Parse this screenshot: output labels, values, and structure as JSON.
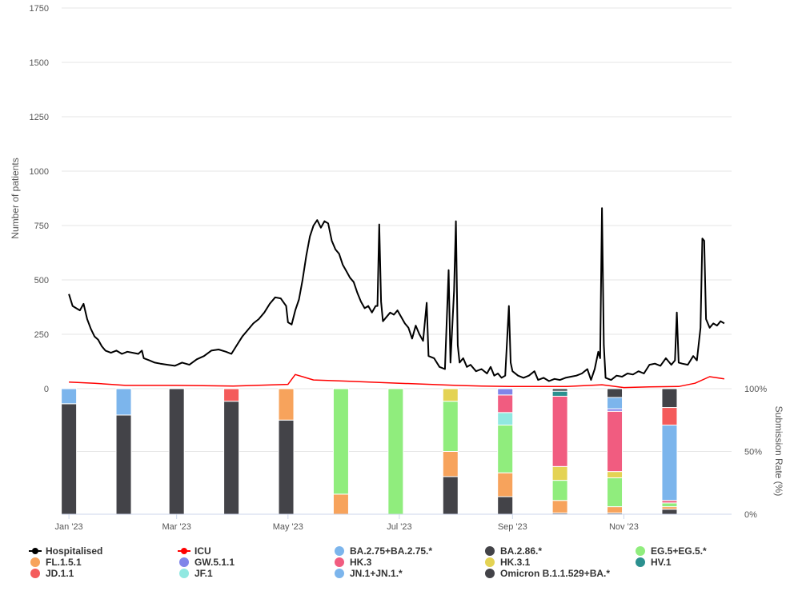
{
  "chart_data": {
    "type": "line",
    "x_axis": {
      "type": "date",
      "ticks": [
        {
          "date": "2023-01-01",
          "label": "Jan '23"
        },
        {
          "date": "2023-03-01",
          "label": "Mar '23"
        },
        {
          "date": "2023-05-01",
          "label": "May '23"
        },
        {
          "date": "2023-07-01",
          "label": "Jul '23"
        },
        {
          "date": "2023-09-01",
          "label": "Sep '23"
        },
        {
          "date": "2023-11-01",
          "label": "Nov '23"
        }
      ],
      "range": [
        "2022-12-28",
        "2023-12-30"
      ]
    },
    "top_panel": {
      "ylabel": "Number of patients",
      "ylim": [
        0,
        1750
      ],
      "yticks": [
        "0",
        "250",
        "500",
        "750",
        "1000",
        "1250",
        "1500",
        "1750"
      ],
      "series": [
        {
          "name": "Hospitalised",
          "color": "#000000",
          "points": [
            [
              "2023-01-01",
              435
            ],
            [
              "2023-01-03",
              380
            ],
            [
              "2023-01-05",
              370
            ],
            [
              "2023-01-07",
              360
            ],
            [
              "2023-01-09",
              390
            ],
            [
              "2023-01-11",
              320
            ],
            [
              "2023-01-13",
              275
            ],
            [
              "2023-01-15",
              240
            ],
            [
              "2023-01-17",
              225
            ],
            [
              "2023-01-19",
              195
            ],
            [
              "2023-01-21",
              175
            ],
            [
              "2023-01-24",
              165
            ],
            [
              "2023-01-27",
              175
            ],
            [
              "2023-01-30",
              160
            ],
            [
              "2023-02-02",
              170
            ],
            [
              "2023-02-05",
              165
            ],
            [
              "2023-02-08",
              160
            ],
            [
              "2023-02-10",
              175
            ],
            [
              "2023-02-11",
              140
            ],
            [
              "2023-02-14",
              130
            ],
            [
              "2023-02-17",
              120
            ],
            [
              "2023-02-20",
              115
            ],
            [
              "2023-02-24",
              110
            ],
            [
              "2023-02-28",
              105
            ],
            [
              "2023-03-04",
              120
            ],
            [
              "2023-03-08",
              110
            ],
            [
              "2023-03-12",
              135
            ],
            [
              "2023-03-16",
              150
            ],
            [
              "2023-03-20",
              175
            ],
            [
              "2023-03-24",
              180
            ],
            [
              "2023-03-28",
              170
            ],
            [
              "2023-03-31",
              160
            ],
            [
              "2023-04-03",
              200
            ],
            [
              "2023-04-06",
              240
            ],
            [
              "2023-04-09",
              270
            ],
            [
              "2023-04-12",
              300
            ],
            [
              "2023-04-15",
              320
            ],
            [
              "2023-04-18",
              350
            ],
            [
              "2023-04-21",
              390
            ],
            [
              "2023-04-24",
              420
            ],
            [
              "2023-04-27",
              415
            ],
            [
              "2023-04-30",
              380
            ],
            [
              "2023-05-01",
              305
            ],
            [
              "2023-05-03",
              295
            ],
            [
              "2023-05-05",
              360
            ],
            [
              "2023-05-07",
              410
            ],
            [
              "2023-05-09",
              500
            ],
            [
              "2023-05-11",
              610
            ],
            [
              "2023-05-13",
              700
            ],
            [
              "2023-05-15",
              750
            ],
            [
              "2023-05-17",
              775
            ],
            [
              "2023-05-19",
              740
            ],
            [
              "2023-05-21",
              770
            ],
            [
              "2023-05-23",
              760
            ],
            [
              "2023-05-25",
              680
            ],
            [
              "2023-05-27",
              640
            ],
            [
              "2023-05-29",
              620
            ],
            [
              "2023-05-31",
              570
            ],
            [
              "2023-06-02",
              540
            ],
            [
              "2023-06-04",
              510
            ],
            [
              "2023-06-06",
              490
            ],
            [
              "2023-06-08",
              440
            ],
            [
              "2023-06-10",
              400
            ],
            [
              "2023-06-12",
              370
            ],
            [
              "2023-06-14",
              380
            ],
            [
              "2023-06-16",
              350
            ],
            [
              "2023-06-18",
              380
            ],
            [
              "2023-06-19",
              380
            ],
            [
              "2023-06-20",
              755
            ],
            [
              "2023-06-21",
              400
            ],
            [
              "2023-06-22",
              310
            ],
            [
              "2023-06-24",
              330
            ],
            [
              "2023-06-26",
              350
            ],
            [
              "2023-06-28",
              340
            ],
            [
              "2023-06-30",
              360
            ],
            [
              "2023-07-02",
              330
            ],
            [
              "2023-07-04",
              300
            ],
            [
              "2023-07-06",
              280
            ],
            [
              "2023-07-08",
              230
            ],
            [
              "2023-07-10",
              290
            ],
            [
              "2023-07-12",
              250
            ],
            [
              "2023-07-14",
              220
            ],
            [
              "2023-07-16",
              395
            ],
            [
              "2023-07-17",
              150
            ],
            [
              "2023-07-20",
              140
            ],
            [
              "2023-07-23",
              100
            ],
            [
              "2023-07-26",
              90
            ],
            [
              "2023-07-28",
              545
            ],
            [
              "2023-07-29",
              120
            ],
            [
              "2023-07-31",
              450
            ],
            [
              "2023-08-01",
              770
            ],
            [
              "2023-08-02",
              200
            ],
            [
              "2023-08-03",
              120
            ],
            [
              "2023-08-05",
              140
            ],
            [
              "2023-08-07",
              100
            ],
            [
              "2023-08-09",
              110
            ],
            [
              "2023-08-12",
              80
            ],
            [
              "2023-08-15",
              90
            ],
            [
              "2023-08-18",
              70
            ],
            [
              "2023-08-20",
              100
            ],
            [
              "2023-08-22",
              60
            ],
            [
              "2023-08-24",
              70
            ],
            [
              "2023-08-26",
              50
            ],
            [
              "2023-08-28",
              60
            ],
            [
              "2023-08-30",
              380
            ],
            [
              "2023-08-31",
              120
            ],
            [
              "2023-09-01",
              80
            ],
            [
              "2023-09-04",
              60
            ],
            [
              "2023-09-07",
              50
            ],
            [
              "2023-09-10",
              60
            ],
            [
              "2023-09-13",
              80
            ],
            [
              "2023-09-15",
              40
            ],
            [
              "2023-09-18",
              50
            ],
            [
              "2023-09-21",
              35
            ],
            [
              "2023-09-24",
              45
            ],
            [
              "2023-09-27",
              40
            ],
            [
              "2023-09-30",
              50
            ],
            [
              "2023-10-03",
              55
            ],
            [
              "2023-10-06",
              60
            ],
            [
              "2023-10-09",
              70
            ],
            [
              "2023-10-12",
              90
            ],
            [
              "2023-10-14",
              40
            ],
            [
              "2023-10-16",
              90
            ],
            [
              "2023-10-18",
              170
            ],
            [
              "2023-10-19",
              140
            ],
            [
              "2023-10-20",
              830
            ],
            [
              "2023-10-21",
              200
            ],
            [
              "2023-10-22",
              50
            ],
            [
              "2023-10-25",
              40
            ],
            [
              "2023-10-28",
              60
            ],
            [
              "2023-10-31",
              55
            ],
            [
              "2023-11-03",
              70
            ],
            [
              "2023-11-06",
              65
            ],
            [
              "2023-11-09",
              80
            ],
            [
              "2023-11-12",
              70
            ],
            [
              "2023-11-15",
              110
            ],
            [
              "2023-11-18",
              115
            ],
            [
              "2023-11-21",
              105
            ],
            [
              "2023-11-24",
              140
            ],
            [
              "2023-11-27",
              110
            ],
            [
              "2023-11-29",
              130
            ],
            [
              "2023-11-30",
              350
            ],
            [
              "2023-12-01",
              120
            ],
            [
              "2023-12-03",
              115
            ],
            [
              "2023-12-06",
              110
            ],
            [
              "2023-12-09",
              150
            ],
            [
              "2023-12-11",
              130
            ],
            [
              "2023-12-13",
              280
            ],
            [
              "2023-12-14",
              690
            ],
            [
              "2023-12-15",
              680
            ],
            [
              "2023-12-16",
              320
            ],
            [
              "2023-12-18",
              280
            ],
            [
              "2023-12-20",
              300
            ],
            [
              "2023-12-22",
              290
            ],
            [
              "2023-12-24",
              310
            ],
            [
              "2023-12-26",
              300
            ]
          ]
        },
        {
          "name": "ICU",
          "color": "#ff0000",
          "points": [
            [
              "2023-01-01",
              30
            ],
            [
              "2023-01-15",
              25
            ],
            [
              "2023-02-01",
              15
            ],
            [
              "2023-03-01",
              15
            ],
            [
              "2023-04-01",
              12
            ],
            [
              "2023-05-01",
              20
            ],
            [
              "2023-05-05",
              65
            ],
            [
              "2023-05-15",
              40
            ],
            [
              "2023-06-01",
              35
            ],
            [
              "2023-07-01",
              25
            ],
            [
              "2023-08-01",
              15
            ],
            [
              "2023-08-15",
              12
            ],
            [
              "2023-09-01",
              10
            ],
            [
              "2023-10-01",
              10
            ],
            [
              "2023-10-20",
              18
            ],
            [
              "2023-11-01",
              5
            ],
            [
              "2023-11-15",
              8
            ],
            [
              "2023-12-01",
              10
            ],
            [
              "2023-12-10",
              25
            ],
            [
              "2023-12-18",
              55
            ],
            [
              "2023-12-22",
              50
            ],
            [
              "2023-12-26",
              45
            ]
          ]
        }
      ]
    },
    "bottom_panel": {
      "type": "stacked-bar",
      "ylabel": "Submission Rate (%)",
      "ylim": [
        0,
        100
      ],
      "yticks": [
        "0%",
        "50%",
        "100%"
      ],
      "series": [
        {
          "name": "BA.2.75+BA.2.75.*",
          "color": "#7cb5ec"
        },
        {
          "name": "BA.2.86.*",
          "color": "#434348"
        },
        {
          "name": "EG.5+EG.5.*",
          "color": "#90ed7d"
        },
        {
          "name": "FL.1.5.1",
          "color": "#f7a35c"
        },
        {
          "name": "GW.5.1.1",
          "color": "#8085e9"
        },
        {
          "name": "HK.3",
          "color": "#f15c80"
        },
        {
          "name": "HK.3.1",
          "color": "#e4d354"
        },
        {
          "name": "HV.1",
          "color": "#2b908f"
        },
        {
          "name": "JD.1.1",
          "color": "#f45b5b"
        },
        {
          "name": "JF.1",
          "color": "#91e8e1"
        },
        {
          "name": "JN.1+JN.1.*",
          "color": "#7cb5ec"
        },
        {
          "name": "Omicron B.1.1.529+BA.*",
          "color": "#434348"
        }
      ],
      "stack_order": [
        "Omicron B.1.1.529+BA.*",
        "BA.2.75+BA.2.75.*",
        "FL.1.5.1",
        "EG.5+EG.5.*",
        "HK.3.1",
        "JF.1",
        "HK.3",
        "GW.5.1.1",
        "HV.1",
        "JN.1+JN.1.*",
        "JD.1.1",
        "BA.2.86.*"
      ],
      "bars": [
        {
          "date": "2023-01-01",
          "values": {
            "Omicron B.1.1.529+BA.*": 88,
            "BA.2.75+BA.2.75.*": 12
          }
        },
        {
          "date": "2023-01-31",
          "values": {
            "Omicron B.1.1.529+BA.*": 79,
            "BA.2.75+BA.2.75.*": 21
          }
        },
        {
          "date": "2023-03-01",
          "values": {
            "Omicron B.1.1.529+BA.*": 100
          }
        },
        {
          "date": "2023-03-31",
          "values": {
            "Omicron B.1.1.529+BA.*": 90,
            "JD.1.1": 10
          }
        },
        {
          "date": "2023-04-30",
          "values": {
            "Omicron B.1.1.529+BA.*": 75,
            "FL.1.5.1": 25
          }
        },
        {
          "date": "2023-05-30",
          "values": {
            "FL.1.5.1": 16,
            "EG.5+EG.5.*": 84
          }
        },
        {
          "date": "2023-06-29",
          "values": {
            "EG.5+EG.5.*": 100
          }
        },
        {
          "date": "2023-07-29",
          "values": {
            "Omicron B.1.1.529+BA.*": 30,
            "HK.3.1": 10,
            "FL.1.5.1": 20,
            "EG.5+EG.5.*": 40
          }
        },
        {
          "date": "2023-08-28",
          "values": {
            "Omicron B.1.1.529+BA.*": 14,
            "JF.1": 10,
            "HK.3": 14,
            "GW.5.1.1": 5,
            "FL.1.5.1": 19,
            "EG.5+EG.5.*": 38
          }
        },
        {
          "date": "2023-09-27",
          "values": {
            "Omicron B.1.1.529+BA.*": 1,
            "HV.1": 4,
            "HK.3.1": 11,
            "HK.3": 56,
            "FL.1.5.1": 10,
            "EG.5+EG.5.*": 16,
            "BA.2.86.*": 2
          }
        },
        {
          "date": "2023-10-27",
          "values": {
            "Omicron B.1.1.529+BA.*": 1,
            "JN.1+JN.1.*": 9,
            "GW.5.1.1": 2,
            "HK.3.1": 5,
            "HK.3": 48,
            "FL.1.5.1": 5,
            "EG.5+EG.5.*": 23,
            "BA.2.86.*": 7
          }
        },
        {
          "date": "2023-11-26",
          "values": {
            "Omicron B.1.1.529+BA.*": 4,
            "JN.1+JN.1.*": 60,
            "JD.1.1": 14,
            "HK.3": 2,
            "FL.1.5.1": 2,
            "EG.5+EG.5.*": 3,
            "BA.2.86.*": 15
          }
        }
      ]
    },
    "legend_position": "bottom"
  },
  "legend": [
    {
      "label": "Hospitalised",
      "color": "#000000",
      "kind": "line"
    },
    {
      "label": "ICU",
      "color": "#ff0000",
      "kind": "line"
    },
    {
      "label": "BA.2.75+BA.2.75.*",
      "color": "#7cb5ec",
      "kind": "dot"
    },
    {
      "label": "BA.2.86.*",
      "color": "#434348",
      "kind": "dot"
    },
    {
      "label": "EG.5+EG.5.*",
      "color": "#90ed7d",
      "kind": "dot"
    },
    {
      "label": "FL.1.5.1",
      "color": "#f7a35c",
      "kind": "dot"
    },
    {
      "label": "GW.5.1.1",
      "color": "#8085e9",
      "kind": "dot"
    },
    {
      "label": "HK.3",
      "color": "#f15c80",
      "kind": "dot"
    },
    {
      "label": "HK.3.1",
      "color": "#e4d354",
      "kind": "dot"
    },
    {
      "label": "HV.1",
      "color": "#2b908f",
      "kind": "dot"
    },
    {
      "label": "JD.1.1",
      "color": "#f45b5b",
      "kind": "dot"
    },
    {
      "label": "JF.1",
      "color": "#91e8e1",
      "kind": "dot"
    },
    {
      "label": "JN.1+JN.1.*",
      "color": "#7cb5ec",
      "kind": "dot"
    },
    {
      "label": "Omicron B.1.1.529+BA.*",
      "color": "#434348",
      "kind": "dot"
    }
  ]
}
